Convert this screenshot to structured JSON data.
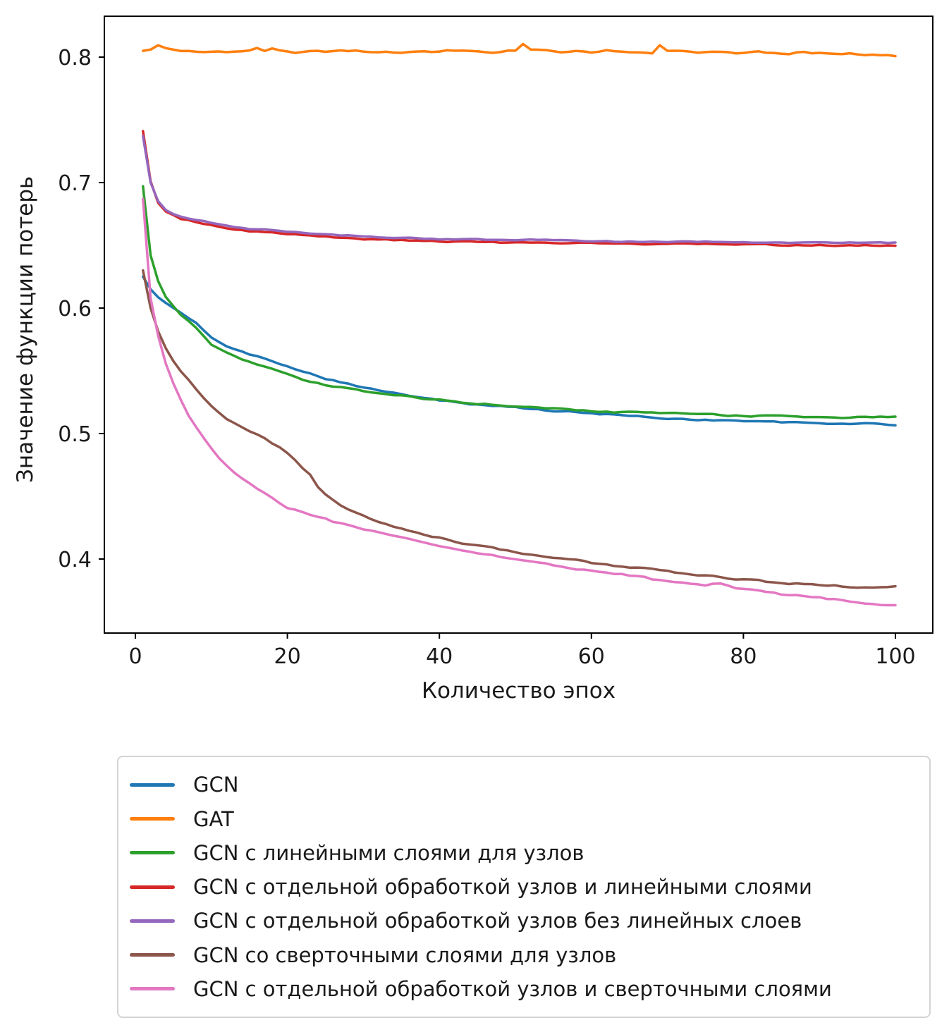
{
  "figure": {
    "background": "#ffffff",
    "text_color": "#1a1a1a",
    "spine_color": "#000000"
  },
  "chart_data": {
    "type": "line",
    "title": "",
    "xlabel": "Количество эпох",
    "ylabel": "Значение функции потерь",
    "x_ticks": [
      0,
      20,
      40,
      60,
      80,
      100
    ],
    "y_ticks": [
      0.4,
      0.5,
      0.6,
      0.7,
      0.8
    ],
    "xlim": [
      -4,
      105
    ],
    "ylim": [
      0.341,
      0.833
    ],
    "grid": false,
    "legend_position": "below-chart",
    "epochs_range": [
      1,
      100
    ],
    "series": [
      {
        "name": "GCN",
        "color": "#1f77b4",
        "jitter": 0.001,
        "points": [
          [
            1,
            0.625
          ],
          [
            2,
            0.615
          ],
          [
            3,
            0.609
          ],
          [
            4,
            0.604
          ],
          [
            5,
            0.6
          ],
          [
            6,
            0.596
          ],
          [
            7,
            0.592
          ],
          [
            8,
            0.588
          ],
          [
            9,
            0.582
          ],
          [
            10,
            0.576
          ],
          [
            12,
            0.57
          ],
          [
            15,
            0.563
          ],
          [
            18,
            0.558
          ],
          [
            20,
            0.554
          ],
          [
            22,
            0.55
          ],
          [
            25,
            0.544
          ],
          [
            28,
            0.54
          ],
          [
            30,
            0.537
          ],
          [
            33,
            0.533
          ],
          [
            35,
            0.531
          ],
          [
            38,
            0.529
          ],
          [
            40,
            0.527
          ],
          [
            43,
            0.525
          ],
          [
            45,
            0.523
          ],
          [
            48,
            0.522
          ],
          [
            50,
            0.521
          ],
          [
            53,
            0.519
          ],
          [
            55,
            0.518
          ],
          [
            58,
            0.517
          ],
          [
            60,
            0.516
          ],
          [
            63,
            0.515
          ],
          [
            65,
            0.514
          ],
          [
            68,
            0.513
          ],
          [
            70,
            0.512
          ],
          [
            75,
            0.511
          ],
          [
            80,
            0.51
          ],
          [
            85,
            0.509
          ],
          [
            90,
            0.508
          ],
          [
            95,
            0.508
          ],
          [
            100,
            0.507
          ]
        ]
      },
      {
        "name": "GAT",
        "color": "#ff7f0e",
        "jitter": 0.0012,
        "points": [
          [
            1,
            0.805
          ],
          [
            2,
            0.806
          ],
          [
            3,
            0.81
          ],
          [
            4,
            0.807
          ],
          [
            5,
            0.806
          ],
          [
            7,
            0.805
          ],
          [
            9,
            0.804
          ],
          [
            11,
            0.805
          ],
          [
            13,
            0.804
          ],
          [
            15,
            0.805
          ],
          [
            16,
            0.807
          ],
          [
            17,
            0.805
          ],
          [
            18,
            0.807
          ],
          [
            19,
            0.805
          ],
          [
            21,
            0.804
          ],
          [
            23,
            0.805
          ],
          [
            25,
            0.804
          ],
          [
            27,
            0.805
          ],
          [
            29,
            0.805
          ],
          [
            31,
            0.804
          ],
          [
            33,
            0.805
          ],
          [
            35,
            0.804
          ],
          [
            37,
            0.805
          ],
          [
            39,
            0.804
          ],
          [
            41,
            0.806
          ],
          [
            43,
            0.805
          ],
          [
            45,
            0.804
          ],
          [
            47,
            0.804
          ],
          [
            49,
            0.805
          ],
          [
            50,
            0.805
          ],
          [
            51,
            0.81
          ],
          [
            52,
            0.806
          ],
          [
            54,
            0.805
          ],
          [
            56,
            0.804
          ],
          [
            58,
            0.805
          ],
          [
            60,
            0.804
          ],
          [
            62,
            0.805
          ],
          [
            64,
            0.804
          ],
          [
            66,
            0.804
          ],
          [
            68,
            0.803
          ],
          [
            69,
            0.809
          ],
          [
            70,
            0.805
          ],
          [
            72,
            0.804
          ],
          [
            74,
            0.803
          ],
          [
            76,
            0.804
          ],
          [
            78,
            0.803
          ],
          [
            80,
            0.803
          ],
          [
            82,
            0.804
          ],
          [
            84,
            0.803
          ],
          [
            86,
            0.803
          ],
          [
            88,
            0.804
          ],
          [
            90,
            0.803
          ],
          [
            92,
            0.802
          ],
          [
            94,
            0.803
          ],
          [
            96,
            0.802
          ],
          [
            98,
            0.802
          ],
          [
            100,
            0.801
          ]
        ]
      },
      {
        "name": "GCN с линейными слоями для узлов",
        "color": "#2ca02c",
        "jitter": 0.001,
        "points": [
          [
            1,
            0.697
          ],
          [
            2,
            0.642
          ],
          [
            3,
            0.621
          ],
          [
            4,
            0.609
          ],
          [
            5,
            0.601
          ],
          [
            6,
            0.594
          ],
          [
            7,
            0.589
          ],
          [
            8,
            0.584
          ],
          [
            9,
            0.577
          ],
          [
            10,
            0.571
          ],
          [
            12,
            0.565
          ],
          [
            15,
            0.557
          ],
          [
            18,
            0.551
          ],
          [
            20,
            0.547
          ],
          [
            22,
            0.543
          ],
          [
            25,
            0.539
          ],
          [
            28,
            0.536
          ],
          [
            30,
            0.534
          ],
          [
            33,
            0.531
          ],
          [
            35,
            0.53
          ],
          [
            38,
            0.528
          ],
          [
            40,
            0.527
          ],
          [
            43,
            0.525
          ],
          [
            45,
            0.524
          ],
          [
            48,
            0.523
          ],
          [
            50,
            0.522
          ],
          [
            53,
            0.521
          ],
          [
            55,
            0.52
          ],
          [
            58,
            0.519
          ],
          [
            60,
            0.518
          ],
          [
            63,
            0.517
          ],
          [
            65,
            0.517
          ],
          [
            70,
            0.516
          ],
          [
            75,
            0.515
          ],
          [
            80,
            0.514
          ],
          [
            85,
            0.514
          ],
          [
            90,
            0.513
          ],
          [
            95,
            0.513
          ],
          [
            100,
            0.513
          ]
        ]
      },
      {
        "name": "GCN с отдельной обработкой узлов и линейными слоями",
        "color": "#d62728",
        "jitter": 0.0008,
        "points": [
          [
            1,
            0.741
          ],
          [
            2,
            0.701
          ],
          [
            3,
            0.684
          ],
          [
            4,
            0.677
          ],
          [
            5,
            0.674
          ],
          [
            6,
            0.671
          ],
          [
            7,
            0.67
          ],
          [
            8,
            0.668
          ],
          [
            9,
            0.667
          ],
          [
            10,
            0.666
          ],
          [
            12,
            0.664
          ],
          [
            15,
            0.661
          ],
          [
            18,
            0.66
          ],
          [
            20,
            0.659
          ],
          [
            25,
            0.657
          ],
          [
            30,
            0.655
          ],
          [
            35,
            0.654
          ],
          [
            40,
            0.653
          ],
          [
            45,
            0.653
          ],
          [
            50,
            0.652
          ],
          [
            55,
            0.652
          ],
          [
            60,
            0.652
          ],
          [
            65,
            0.651
          ],
          [
            70,
            0.651
          ],
          [
            75,
            0.651
          ],
          [
            80,
            0.651
          ],
          [
            85,
            0.65
          ],
          [
            90,
            0.65
          ],
          [
            95,
            0.65
          ],
          [
            100,
            0.65
          ]
        ]
      },
      {
        "name": "GCN с отдельной обработкой узлов без линейных слоев",
        "color": "#9467bd",
        "jitter": 0.0008,
        "points": [
          [
            1,
            0.737
          ],
          [
            2,
            0.7
          ],
          [
            3,
            0.685
          ],
          [
            4,
            0.678
          ],
          [
            5,
            0.675
          ],
          [
            6,
            0.673
          ],
          [
            8,
            0.67
          ],
          [
            10,
            0.668
          ],
          [
            12,
            0.666
          ],
          [
            15,
            0.663
          ],
          [
            18,
            0.662
          ],
          [
            20,
            0.661
          ],
          [
            25,
            0.659
          ],
          [
            30,
            0.657
          ],
          [
            35,
            0.656
          ],
          [
            40,
            0.655
          ],
          [
            45,
            0.655
          ],
          [
            50,
            0.654
          ],
          [
            55,
            0.654
          ],
          [
            60,
            0.653
          ],
          [
            65,
            0.653
          ],
          [
            70,
            0.653
          ],
          [
            75,
            0.653
          ],
          [
            80,
            0.653
          ],
          [
            85,
            0.652
          ],
          [
            90,
            0.652
          ],
          [
            95,
            0.652
          ],
          [
            100,
            0.652
          ]
        ]
      },
      {
        "name": "GCN со сверточными слоями для узлов",
        "color": "#8c564b",
        "jitter": 0.0012,
        "points": [
          [
            1,
            0.63
          ],
          [
            2,
            0.6
          ],
          [
            3,
            0.581
          ],
          [
            4,
            0.568
          ],
          [
            5,
            0.558
          ],
          [
            6,
            0.549
          ],
          [
            7,
            0.542
          ],
          [
            8,
            0.535
          ],
          [
            9,
            0.528
          ],
          [
            10,
            0.522
          ],
          [
            11,
            0.517
          ],
          [
            12,
            0.512
          ],
          [
            13,
            0.508
          ],
          [
            14,
            0.505
          ],
          [
            15,
            0.502
          ],
          [
            16,
            0.5
          ],
          [
            17,
            0.497
          ],
          [
            18,
            0.493
          ],
          [
            19,
            0.489
          ],
          [
            20,
            0.484
          ],
          [
            21,
            0.479
          ],
          [
            22,
            0.473
          ],
          [
            23,
            0.467
          ],
          [
            24,
            0.458
          ],
          [
            25,
            0.452
          ],
          [
            26,
            0.447
          ],
          [
            27,
            0.443
          ],
          [
            28,
            0.44
          ],
          [
            30,
            0.435
          ],
          [
            32,
            0.43
          ],
          [
            34,
            0.426
          ],
          [
            36,
            0.422
          ],
          [
            38,
            0.419
          ],
          [
            40,
            0.417
          ],
          [
            43,
            0.413
          ],
          [
            45,
            0.411
          ],
          [
            48,
            0.408
          ],
          [
            50,
            0.406
          ],
          [
            53,
            0.403
          ],
          [
            55,
            0.401
          ],
          [
            58,
            0.399
          ],
          [
            60,
            0.397
          ],
          [
            63,
            0.395
          ],
          [
            65,
            0.394
          ],
          [
            68,
            0.392
          ],
          [
            70,
            0.39
          ],
          [
            73,
            0.388
          ],
          [
            75,
            0.387
          ],
          [
            78,
            0.385
          ],
          [
            80,
            0.384
          ],
          [
            83,
            0.382
          ],
          [
            85,
            0.381
          ],
          [
            88,
            0.38
          ],
          [
            90,
            0.379
          ],
          [
            95,
            0.378
          ],
          [
            100,
            0.378
          ]
        ]
      },
      {
        "name": "GCN с отдельной обработкой узлов и сверточными слоями",
        "color": "#e377c2",
        "jitter": 0.0012,
        "points": [
          [
            1,
            0.687
          ],
          [
            2,
            0.608
          ],
          [
            3,
            0.578
          ],
          [
            4,
            0.556
          ],
          [
            5,
            0.54
          ],
          [
            6,
            0.527
          ],
          [
            7,
            0.515
          ],
          [
            8,
            0.505
          ],
          [
            9,
            0.496
          ],
          [
            10,
            0.488
          ],
          [
            11,
            0.481
          ],
          [
            12,
            0.475
          ],
          [
            13,
            0.469
          ],
          [
            14,
            0.464
          ],
          [
            15,
            0.46
          ],
          [
            16,
            0.456
          ],
          [
            17,
            0.452
          ],
          [
            18,
            0.448
          ],
          [
            19,
            0.444
          ],
          [
            20,
            0.441
          ],
          [
            22,
            0.437
          ],
          [
            24,
            0.434
          ],
          [
            25,
            0.432
          ],
          [
            26,
            0.43
          ],
          [
            28,
            0.427
          ],
          [
            30,
            0.424
          ],
          [
            33,
            0.42
          ],
          [
            35,
            0.417
          ],
          [
            38,
            0.413
          ],
          [
            40,
            0.411
          ],
          [
            43,
            0.407
          ],
          [
            45,
            0.405
          ],
          [
            48,
            0.402
          ],
          [
            50,
            0.4
          ],
          [
            53,
            0.397
          ],
          [
            55,
            0.395
          ],
          [
            58,
            0.392
          ],
          [
            60,
            0.391
          ],
          [
            63,
            0.388
          ],
          [
            65,
            0.387
          ],
          [
            68,
            0.384
          ],
          [
            70,
            0.383
          ],
          [
            73,
            0.38
          ],
          [
            75,
            0.379
          ],
          [
            77,
            0.381
          ],
          [
            79,
            0.377
          ],
          [
            80,
            0.376
          ],
          [
            83,
            0.374
          ],
          [
            85,
            0.372
          ],
          [
            88,
            0.37
          ],
          [
            90,
            0.369
          ],
          [
            93,
            0.367
          ],
          [
            95,
            0.366
          ],
          [
            98,
            0.364
          ],
          [
            100,
            0.363
          ]
        ]
      }
    ]
  }
}
